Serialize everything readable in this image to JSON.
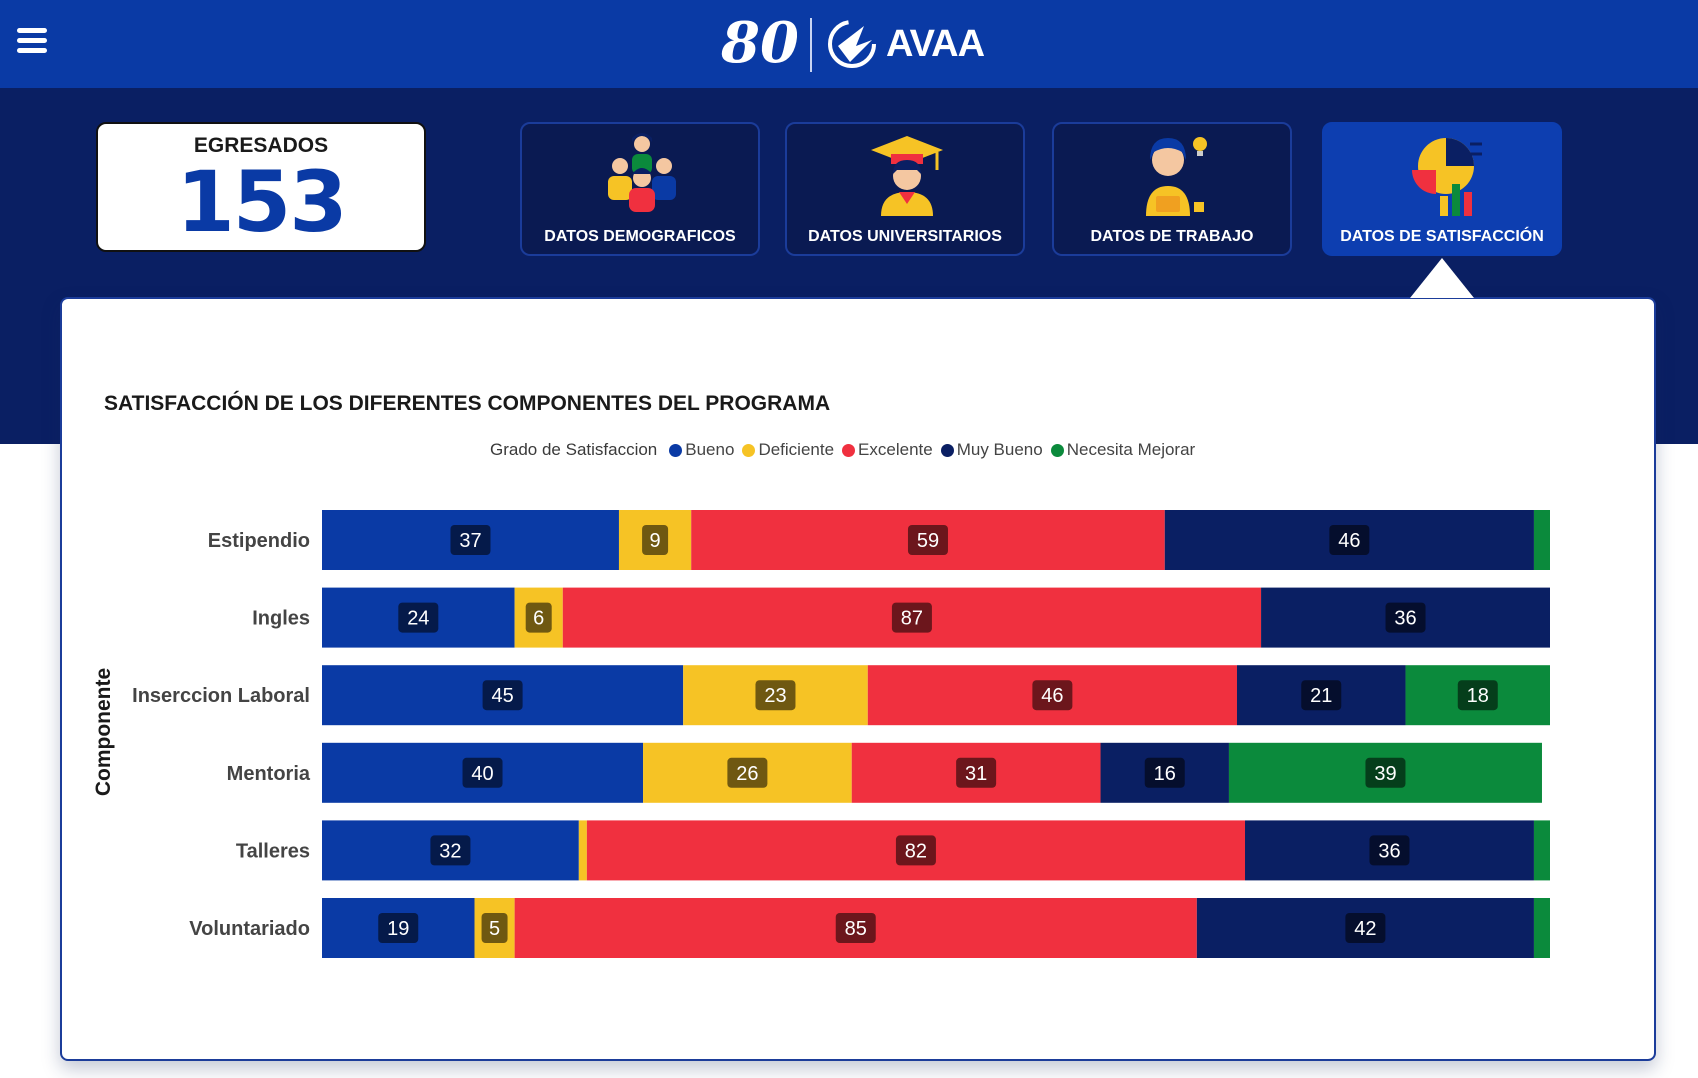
{
  "header": {
    "logo_text": "80",
    "brand": "AVAA"
  },
  "stats": {
    "egresados_label": "EGRESADOS",
    "egresados_value": "153"
  },
  "tabs": [
    {
      "label": "DATOS DEMOGRAFICOS",
      "active": false,
      "icon": "people-group-icon"
    },
    {
      "label": "DATOS UNIVERSITARIOS",
      "active": false,
      "icon": "graduate-icon"
    },
    {
      "label": "DATOS DE TRABAJO",
      "active": false,
      "icon": "worker-idea-icon"
    },
    {
      "label": "DATOS DE SATISFACCIÓN",
      "active": true,
      "icon": "satisfaction-chart-icon"
    }
  ],
  "chart_data": {
    "type": "bar",
    "orientation": "horizontal",
    "stacked": true,
    "title": "SATISFACCIÓN DE LOS DIFERENTES COMPONENTES DEL PROGRAMA",
    "legend_title": "Grado de Satisfaccion",
    "legend_position": "top",
    "ylabel": "Componente",
    "xlabel": "",
    "categories": [
      "Estipendio",
      "Ingles",
      "Inserccion Laboral",
      "Mentoria",
      "Talleres",
      "Voluntariado"
    ],
    "series": [
      {
        "name": "Bueno",
        "color": "#0a3aa5",
        "values": [
          37,
          24,
          45,
          40,
          32,
          19
        ]
      },
      {
        "name": "Deficiente",
        "color": "#f6c325",
        "values": [
          9,
          6,
          23,
          26,
          1,
          5
        ]
      },
      {
        "name": "Excelente",
        "color": "#f0303f",
        "values": [
          59,
          87,
          46,
          31,
          82,
          85
        ]
      },
      {
        "name": "Muy Bueno",
        "color": "#0a1f63",
        "values": [
          46,
          36,
          21,
          16,
          36,
          42
        ]
      },
      {
        "name": "Necesita Mejorar",
        "color": "#0b8a3c",
        "values": [
          2,
          0,
          18,
          39,
          2,
          2
        ]
      }
    ],
    "label_min": 3
  }
}
